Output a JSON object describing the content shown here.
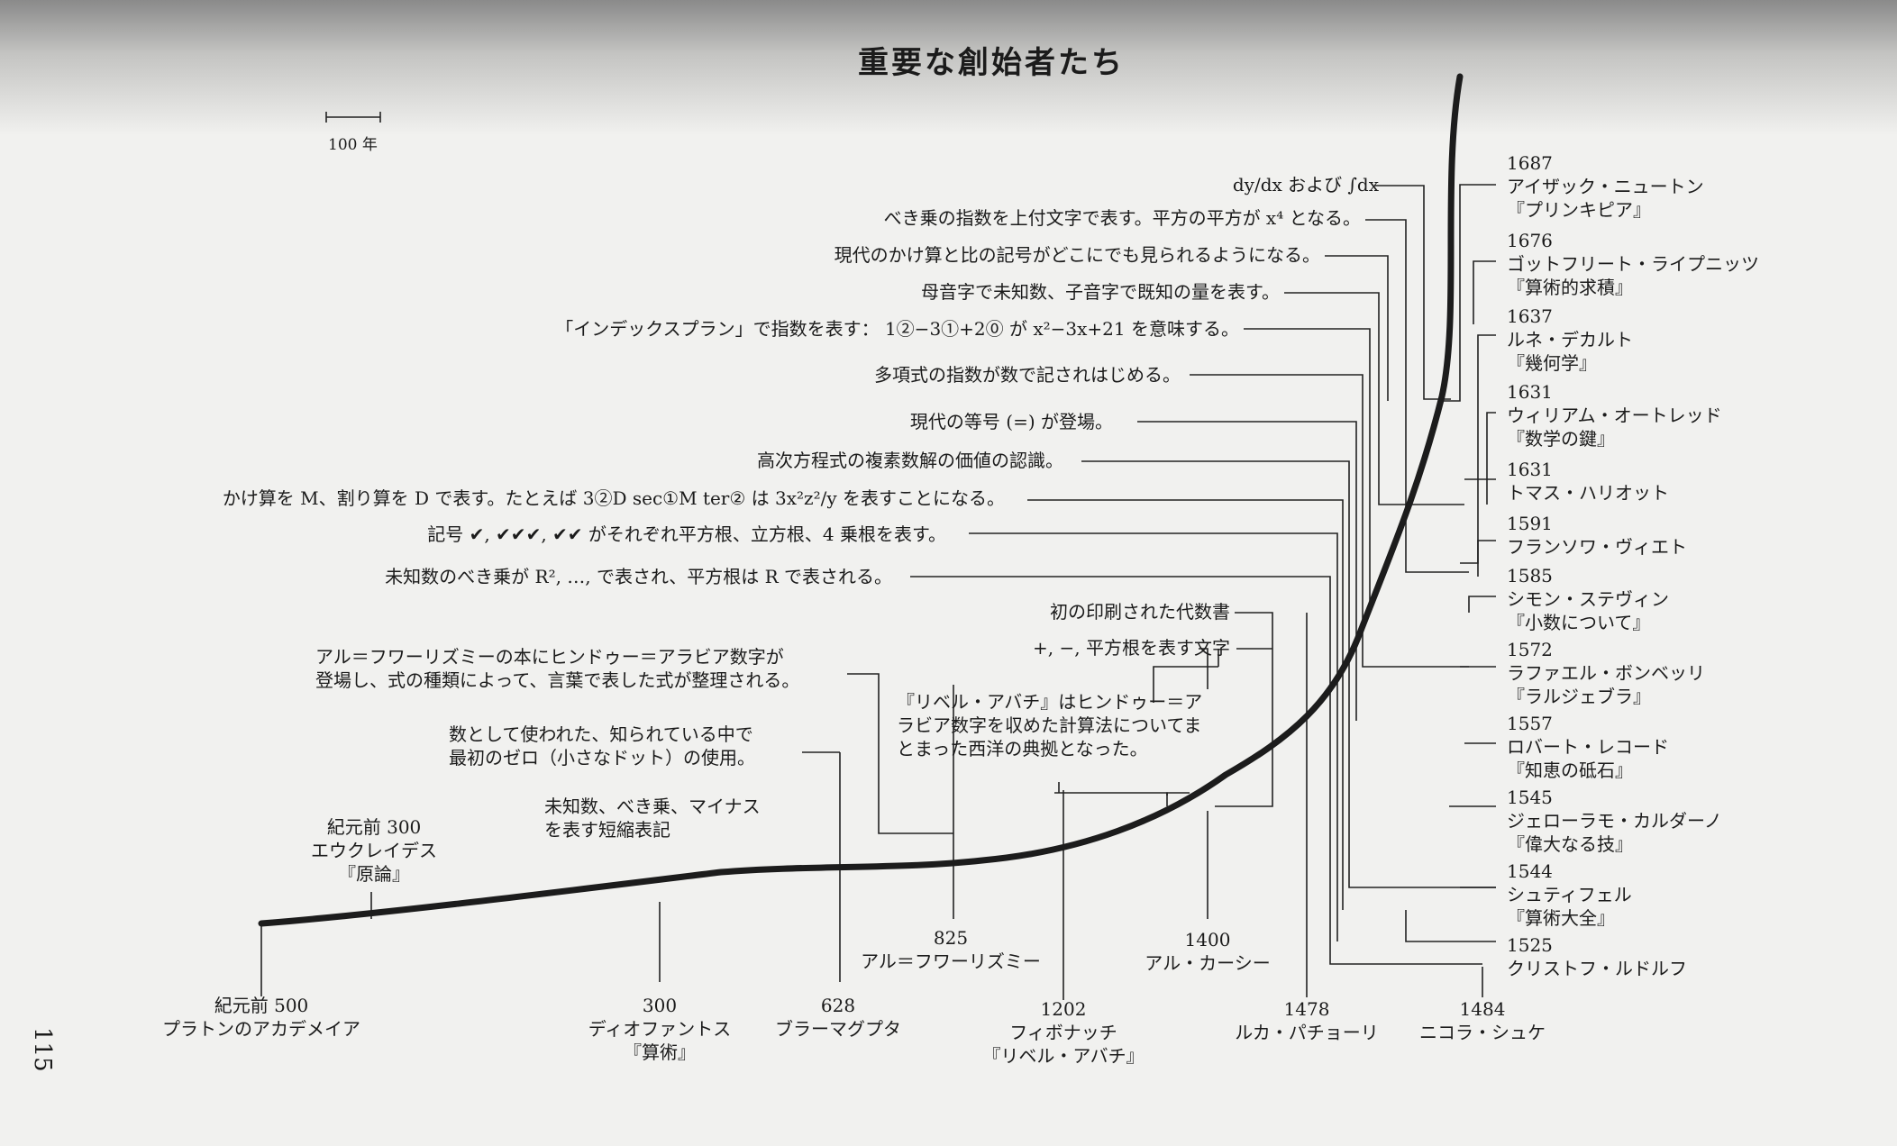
{
  "title": "重要な創始者たち",
  "scale_label": "100 年",
  "page_number": "115",
  "bottom_events": [
    {
      "year": "紀元前 500",
      "lines": [
        "プラトンのアカデメイア"
      ]
    },
    {
      "year": "300",
      "lines": [
        "ディオファントス",
        "『算術』"
      ]
    },
    {
      "year": "628",
      "lines": [
        "ブラーマグプタ"
      ]
    },
    {
      "year": "1202",
      "lines": [
        "フィボナッチ",
        "『リベル・アバチ』"
      ]
    },
    {
      "year": "1478",
      "lines": [
        "ルカ・パチョーリ"
      ]
    },
    {
      "year": "1484",
      "lines": [
        "ニコラ・シュケ"
      ]
    }
  ],
  "mid_events": [
    {
      "year": "紀元前 300",
      "lines": [
        "エウクレイデス",
        "『原論』"
      ]
    },
    {
      "year": "825",
      "lines": [
        "アル＝フワーリズミー"
      ]
    },
    {
      "year": "1400",
      "lines": [
        "アル・カーシー"
      ]
    }
  ],
  "right_events": [
    {
      "year": "1687",
      "name": "アイザック・ニュートン",
      "work": "『プリンキピア』"
    },
    {
      "year": "1676",
      "name": "ゴットフリート・ライプニッツ",
      "work": "『算術的求積』"
    },
    {
      "year": "1637",
      "name": "ルネ・デカルト",
      "work": "『幾何学』"
    },
    {
      "year": "1631",
      "name": "ウィリアム・オートレッド",
      "work": "『数学の鍵』"
    },
    {
      "year": "1631",
      "name": "トマス・ハリオット",
      "work": ""
    },
    {
      "year": "1591",
      "name": "フランソワ・ヴィエト",
      "work": ""
    },
    {
      "year": "1585",
      "name": "シモン・ステヴィン",
      "work": "『小数について』"
    },
    {
      "year": "1572",
      "name": "ラファエル・ボンベッリ",
      "work": "『ラルジェブラ』"
    },
    {
      "year": "1557",
      "name": "ロバート・レコード",
      "work": "『知恵の砥石』"
    },
    {
      "year": "1545",
      "name": "ジェローラモ・カルダーノ",
      "work": "『偉大なる技』"
    },
    {
      "year": "1544",
      "name": "シュティフェル",
      "work": "『算術大全』"
    },
    {
      "year": "1525",
      "name": "クリストフ・ルドルフ",
      "work": ""
    }
  ],
  "developments": [
    "dy/dx および ∫dx",
    "べき乗の指数を上付文字で表す。平方の平方が x⁴ となる。",
    "現代のかけ算と比の記号がどこにでも見られるようになる。",
    "母音字で未知数、子音字で既知の量を表す。",
    "「インデックスプラン」で指数を表す： 1②−3①+2⓪ が x²−3x+21 を意味する。",
    "多項式の指数が数で記されはじめる。",
    "現代の等号 (=) が登場。",
    "高次方程式の複素数解の価値の認識。",
    "かけ算を M、割り算を D で表す。たとえば 3②D sec①M ter② は 3x²z²/y を表すことになる。",
    "記号 ✔, ✔✔✔, ✔✔ がそれぞれ平方根、立方根、4 乗根を表す。",
    "未知数のべき乗が R², …, で表され、平方根は R で表される。"
  ],
  "printed": [
    "初の印刷された代数書",
    "+, −, 平方根を表す文字"
  ],
  "liber_note": [
    "『リベル・アバチ』はヒンドゥー＝ア",
    "ラビア数字を収めた計算法についてま",
    "とまった西洋の典拠となった。"
  ],
  "khwarizmi_note": [
    "アル＝フワーリズミーの本にヒンドゥー＝アラビア数字が",
    "登場し、式の種類によって、言葉で表した式が整理される。"
  ],
  "zero_note": [
    "数として使われた、知られている中で",
    "最初のゼロ（小さなドット）の使用。"
  ],
  "diophantus_note": [
    "未知数、べき乗、マイナス",
    "を表す短縮表記"
  ]
}
